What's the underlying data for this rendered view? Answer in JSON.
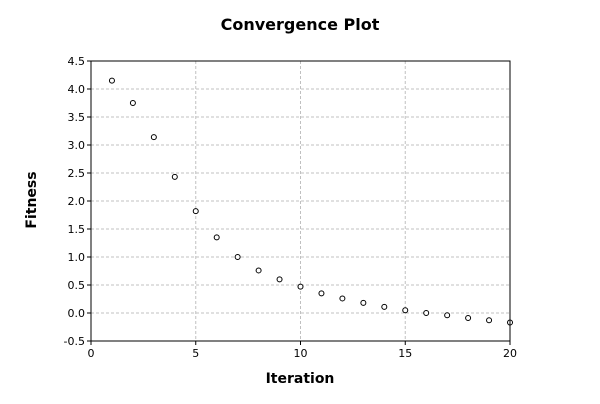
{
  "chart_data": {
    "type": "scatter",
    "title": "Convergence Plot",
    "xlabel": "Iteration",
    "ylabel": "Fitness",
    "xlim": [
      0,
      20
    ],
    "ylim": [
      -0.5,
      4.5
    ],
    "xticks": [
      0,
      5,
      10,
      15,
      20
    ],
    "yticks": [
      -0.5,
      0.0,
      0.5,
      1.0,
      1.5,
      2.0,
      2.5,
      3.0,
      3.5,
      4.0,
      4.5
    ],
    "grid": true,
    "marker": "open-circle",
    "series": [
      {
        "x": [
          1,
          2,
          3,
          4,
          5,
          6,
          7,
          8,
          9,
          10,
          11,
          12,
          13,
          14,
          15,
          16,
          17,
          18,
          19,
          20
        ],
        "y": [
          4.15,
          3.75,
          3.14,
          2.43,
          1.82,
          1.35,
          1.0,
          0.76,
          0.6,
          0.47,
          0.35,
          0.26,
          0.18,
          0.11,
          0.05,
          0.0,
          -0.04,
          -0.09,
          -0.13,
          -0.17
        ]
      }
    ],
    "colors": {
      "marker": "#000000",
      "grid": "#c0c0c0",
      "axis": "#000000",
      "background": "#ffffff"
    }
  }
}
